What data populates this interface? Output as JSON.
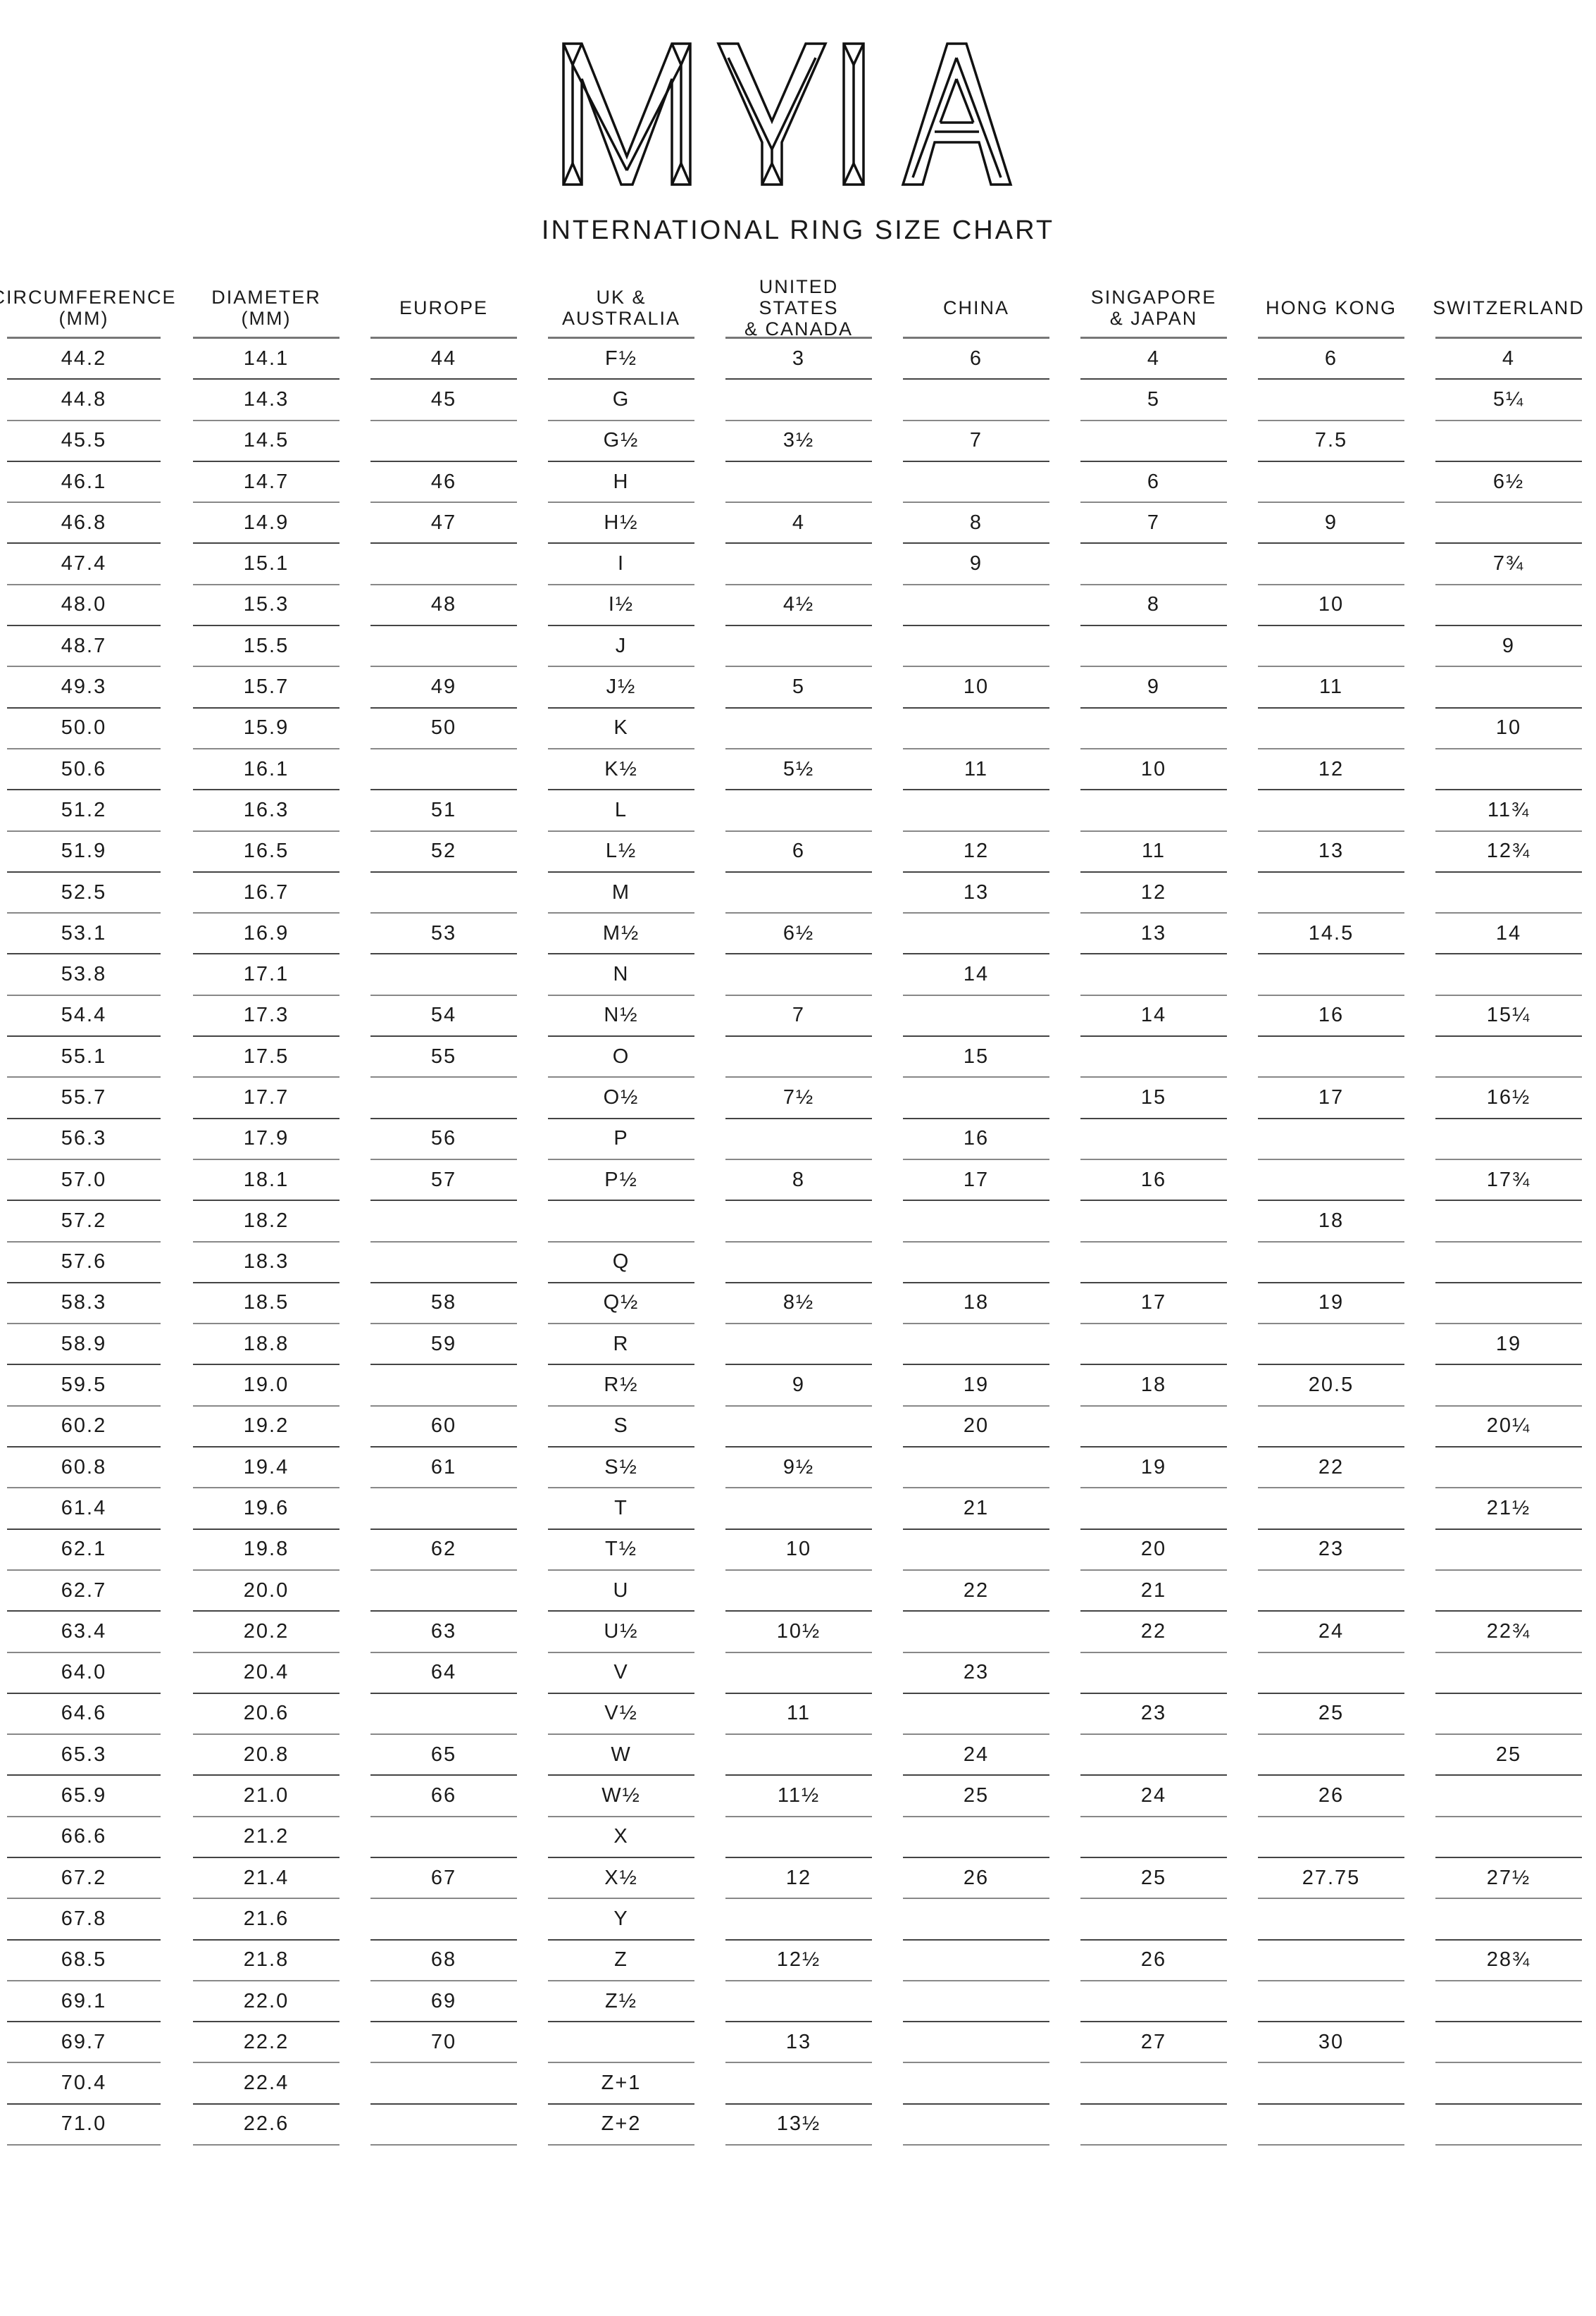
{
  "logo": {
    "text": "MYIA"
  },
  "title": "INTERNATIONAL RING SIZE CHART",
  "chart_data": {
    "type": "table",
    "columns": [
      "CIRCUMFERENCE\n(MM)",
      "DIAMETER\n(MM)",
      "EUROPE",
      "UK &\nAUSTRALIA",
      "UNITED STATES\n& CANADA",
      "CHINA",
      "SINGAPORE\n& JAPAN",
      "HONG KONG",
      "SWITZERLAND"
    ],
    "rows": [
      [
        "44.2",
        "14.1",
        "44",
        "F½",
        "3",
        "6",
        "4",
        "6",
        "4"
      ],
      [
        "44.8",
        "14.3",
        "45",
        "G",
        "",
        "",
        "5",
        "",
        "5¼"
      ],
      [
        "45.5",
        "14.5",
        "",
        "G½",
        "3½",
        "7",
        "",
        "7.5",
        ""
      ],
      [
        "46.1",
        "14.7",
        "46",
        "H",
        "",
        "",
        "6",
        "",
        "6½"
      ],
      [
        "46.8",
        "14.9",
        "47",
        "H½",
        "4",
        "8",
        "7",
        "9",
        ""
      ],
      [
        "47.4",
        "15.1",
        "",
        "I",
        "",
        "9",
        "",
        "",
        "7¾"
      ],
      [
        "48.0",
        "15.3",
        "48",
        "I½",
        "4½",
        "",
        "8",
        "10",
        ""
      ],
      [
        "48.7",
        "15.5",
        "",
        "J",
        "",
        "",
        "",
        "",
        "9"
      ],
      [
        "49.3",
        "15.7",
        "49",
        "J½",
        "5",
        "10",
        "9",
        "11",
        ""
      ],
      [
        "50.0",
        "15.9",
        "50",
        "K",
        "",
        "",
        "",
        "",
        "10"
      ],
      [
        "50.6",
        "16.1",
        "",
        "K½",
        "5½",
        "11",
        "10",
        "12",
        ""
      ],
      [
        "51.2",
        "16.3",
        "51",
        "L",
        "",
        "",
        "",
        "",
        "11¾"
      ],
      [
        "51.9",
        "16.5",
        "52",
        "L½",
        "6",
        "12",
        "11",
        "13",
        "12¾"
      ],
      [
        "52.5",
        "16.7",
        "",
        "M",
        "",
        "13",
        "12",
        "",
        ""
      ],
      [
        "53.1",
        "16.9",
        "53",
        "M½",
        "6½",
        "",
        "13",
        "14.5",
        "14"
      ],
      [
        "53.8",
        "17.1",
        "",
        "N",
        "",
        "14",
        "",
        "",
        ""
      ],
      [
        "54.4",
        "17.3",
        "54",
        "N½",
        "7",
        "",
        "14",
        "16",
        "15¼"
      ],
      [
        "55.1",
        "17.5",
        "55",
        "O",
        "",
        "15",
        "",
        "",
        ""
      ],
      [
        "55.7",
        "17.7",
        "",
        "O½",
        "7½",
        "",
        "15",
        "17",
        "16½"
      ],
      [
        "56.3",
        "17.9",
        "56",
        "P",
        "",
        "16",
        "",
        "",
        ""
      ],
      [
        "57.0",
        "18.1",
        "57",
        "P½",
        "8",
        "17",
        "16",
        "",
        "17¾"
      ],
      [
        "57.2",
        "18.2",
        "",
        "",
        "",
        "",
        "",
        "18",
        ""
      ],
      [
        "57.6",
        "18.3",
        "",
        "Q",
        "",
        "",
        "",
        "",
        ""
      ],
      [
        "58.3",
        "18.5",
        "58",
        "Q½",
        "8½",
        "18",
        "17",
        "19",
        ""
      ],
      [
        "58.9",
        "18.8",
        "59",
        "R",
        "",
        "",
        "",
        "",
        "19"
      ],
      [
        "59.5",
        "19.0",
        "",
        "R½",
        "9",
        "19",
        "18",
        "20.5",
        ""
      ],
      [
        "60.2",
        "19.2",
        "60",
        "S",
        "",
        "20",
        "",
        "",
        "20¼"
      ],
      [
        "60.8",
        "19.4",
        "61",
        "S½",
        "9½",
        "",
        "19",
        "22",
        ""
      ],
      [
        "61.4",
        "19.6",
        "",
        "T",
        "",
        "21",
        "",
        "",
        "21½"
      ],
      [
        "62.1",
        "19.8",
        "62",
        "T½",
        "10",
        "",
        "20",
        "23",
        ""
      ],
      [
        "62.7",
        "20.0",
        "",
        "U",
        "",
        "22",
        "21",
        "",
        ""
      ],
      [
        "63.4",
        "20.2",
        "63",
        "U½",
        "10½",
        "",
        "22",
        "24",
        "22¾"
      ],
      [
        "64.0",
        "20.4",
        "64",
        "V",
        "",
        "23",
        "",
        "",
        ""
      ],
      [
        "64.6",
        "20.6",
        "",
        "V½",
        "11",
        "",
        "23",
        "25",
        ""
      ],
      [
        "65.3",
        "20.8",
        "65",
        "W",
        "",
        "24",
        "",
        "",
        "25"
      ],
      [
        "65.9",
        "21.0",
        "66",
        "W½",
        "11½",
        "25",
        "24",
        "26",
        ""
      ],
      [
        "66.6",
        "21.2",
        "",
        "X",
        "",
        "",
        "",
        "",
        ""
      ],
      [
        "67.2",
        "21.4",
        "67",
        "X½",
        "12",
        "26",
        "25",
        "27.75",
        "27½"
      ],
      [
        "67.8",
        "21.6",
        "",
        "Y",
        "",
        "",
        "",
        "",
        ""
      ],
      [
        "68.5",
        "21.8",
        "68",
        "Z",
        "12½",
        "",
        "26",
        "",
        "28¾"
      ],
      [
        "69.1",
        "22.0",
        "69",
        "Z½",
        "",
        "",
        "",
        "",
        ""
      ],
      [
        "69.7",
        "22.2",
        "70",
        "",
        "13",
        "",
        "27",
        "30",
        ""
      ],
      [
        "70.4",
        "22.4",
        "",
        "Z+1",
        "",
        "",
        "",
        "",
        ""
      ],
      [
        "71.0",
        "22.6",
        "",
        "Z+2",
        "13½",
        "",
        "",
        "",
        ""
      ]
    ]
  }
}
